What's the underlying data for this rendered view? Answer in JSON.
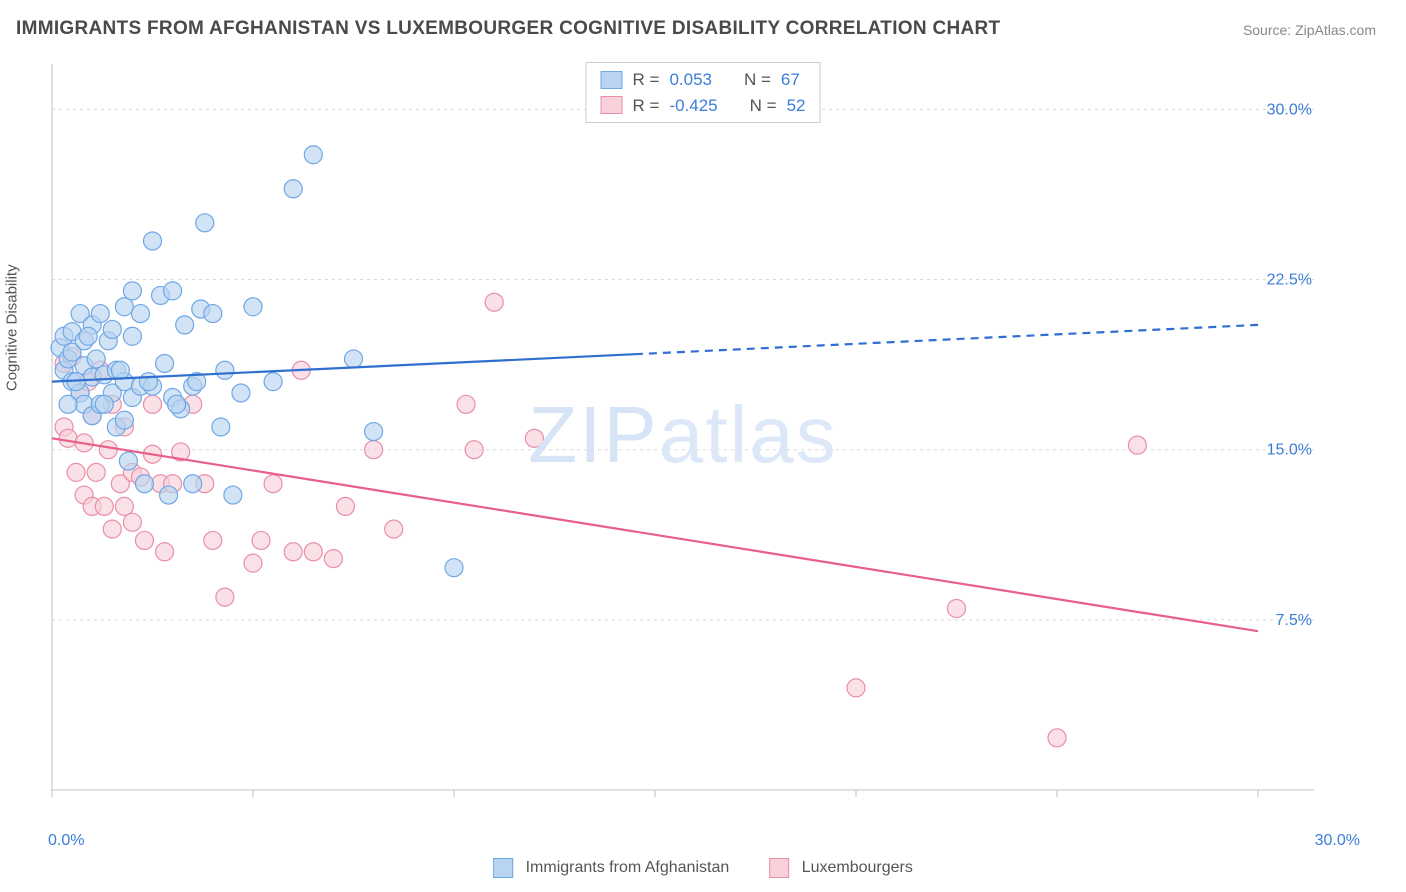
{
  "title": "IMMIGRANTS FROM AFGHANISTAN VS LUXEMBOURGER COGNITIVE DISABILITY CORRELATION CHART",
  "source": "Source: ZipAtlas.com",
  "ylabel": "Cognitive Disability",
  "watermark_a": "ZIP",
  "watermark_b": "atlas",
  "chart": {
    "type": "scatter",
    "xlim": [
      0,
      30
    ],
    "ylim": [
      0,
      32
    ],
    "yticks": [
      7.5,
      15.0,
      22.5,
      30.0
    ],
    "ytick_labels": [
      "7.5%",
      "15.0%",
      "22.5%",
      "30.0%"
    ],
    "xtick_positions": [
      0,
      5,
      10,
      15,
      20,
      25,
      30
    ],
    "x_axis_label_left": "0.0%",
    "x_axis_label_right": "30.0%",
    "grid_color": "#d8d8d8",
    "axis_color": "#c0c0c0",
    "background_color": "#ffffff",
    "marker_radius": 9,
    "marker_stroke_width": 1.2,
    "line_width": 2.2
  },
  "series": {
    "blue": {
      "label": "Immigrants from Afghanistan",
      "fill": "#b9d4f0",
      "stroke": "#6fa8e6",
      "line_color": "#2f6fd0",
      "R": "0.053",
      "N": "67",
      "trend": {
        "x1": 0,
        "y1": 18.0,
        "x2": 30,
        "y2": 20.5,
        "solid_until_x": 14.5
      },
      "points": [
        [
          0.2,
          19.5
        ],
        [
          0.3,
          20.0
        ],
        [
          0.3,
          18.5
        ],
        [
          0.4,
          19.0
        ],
        [
          0.5,
          20.2
        ],
        [
          0.5,
          18.0
        ],
        [
          0.5,
          19.3
        ],
        [
          0.7,
          17.5
        ],
        [
          0.7,
          21.0
        ],
        [
          0.8,
          18.7
        ],
        [
          0.8,
          17.0
        ],
        [
          0.8,
          19.8
        ],
        [
          1.0,
          18.2
        ],
        [
          1.0,
          20.5
        ],
        [
          1.0,
          16.5
        ],
        [
          1.2,
          17.0
        ],
        [
          1.2,
          21.0
        ],
        [
          1.3,
          18.3
        ],
        [
          1.4,
          19.8
        ],
        [
          1.5,
          17.5
        ],
        [
          1.5,
          20.3
        ],
        [
          1.6,
          16.0
        ],
        [
          1.6,
          18.5
        ],
        [
          1.8,
          21.3
        ],
        [
          1.8,
          16.3
        ],
        [
          1.8,
          18
        ],
        [
          1.9,
          14.5
        ],
        [
          2.0,
          17.3
        ],
        [
          2.0,
          22.0
        ],
        [
          2.0,
          20.0
        ],
        [
          2.2,
          21.0
        ],
        [
          2.2,
          17.8
        ],
        [
          2.3,
          13.5
        ],
        [
          2.5,
          17.8
        ],
        [
          2.5,
          24.2
        ],
        [
          2.7,
          21.8
        ],
        [
          2.9,
          13.0
        ],
        [
          3.0,
          17.3
        ],
        [
          3.0,
          22.0
        ],
        [
          3.2,
          16.8
        ],
        [
          3.3,
          20.5
        ],
        [
          3.5,
          13.5
        ],
        [
          3.5,
          17.8
        ],
        [
          3.7,
          21.2
        ],
        [
          3.8,
          25.0
        ],
        [
          4.0,
          21.0
        ],
        [
          4.2,
          16.0
        ],
        [
          4.5,
          13.0
        ],
        [
          5.0,
          21.3
        ],
        [
          5.5,
          18.0
        ],
        [
          6.0,
          26.5
        ],
        [
          6.5,
          28.0
        ],
        [
          7.5,
          19.0
        ],
        [
          8.0,
          15.8
        ],
        [
          10.0,
          9.8
        ],
        [
          0.4,
          17.0
        ],
        [
          0.6,
          18.0
        ],
        [
          0.9,
          20.0
        ],
        [
          1.1,
          19.0
        ],
        [
          1.3,
          17.0
        ],
        [
          1.7,
          18.5
        ],
        [
          2.4,
          18.0
        ],
        [
          2.8,
          18.8
        ],
        [
          3.1,
          17
        ],
        [
          3.6,
          18
        ],
        [
          4.3,
          18.5
        ],
        [
          4.7,
          17.5
        ]
      ]
    },
    "pink": {
      "label": "Luxembourgers",
      "fill": "#f7d0da",
      "stroke": "#e98fa8",
      "line_color": "#e85f89",
      "R": "-0.425",
      "N": "52",
      "trend": {
        "x1": 0,
        "y1": 15.5,
        "x2": 30,
        "y2": 7.0,
        "solid_until_x": 30
      },
      "points": [
        [
          0.3,
          16.0
        ],
        [
          0.3,
          18.8
        ],
        [
          0.4,
          15.5
        ],
        [
          0.5,
          19.1
        ],
        [
          0.6,
          14.0
        ],
        [
          0.7,
          17.5
        ],
        [
          0.8,
          13.0
        ],
        [
          0.8,
          15.3
        ],
        [
          0.9,
          18.0
        ],
        [
          1.0,
          12.5
        ],
        [
          1.0,
          16.5
        ],
        [
          1.1,
          14.0
        ],
        [
          1.2,
          18.5
        ],
        [
          1.3,
          12.5
        ],
        [
          1.4,
          15.0
        ],
        [
          1.5,
          11.5
        ],
        [
          1.5,
          17.0
        ],
        [
          1.7,
          13.5
        ],
        [
          1.8,
          12.5
        ],
        [
          1.8,
          16.0
        ],
        [
          2.0,
          14.0
        ],
        [
          2.0,
          11.8
        ],
        [
          2.2,
          13.8
        ],
        [
          2.3,
          11.0
        ],
        [
          2.5,
          14.8
        ],
        [
          2.5,
          17.0
        ],
        [
          2.7,
          13.5
        ],
        [
          2.8,
          10.5
        ],
        [
          3.0,
          13.5
        ],
        [
          3.2,
          14.9
        ],
        [
          3.5,
          17.0
        ],
        [
          3.8,
          13.5
        ],
        [
          4.0,
          11.0
        ],
        [
          4.3,
          8.5
        ],
        [
          5.0,
          10.0
        ],
        [
          5.2,
          11.0
        ],
        [
          5.5,
          13.5
        ],
        [
          6.0,
          10.5
        ],
        [
          6.2,
          18.5
        ],
        [
          6.5,
          10.5
        ],
        [
          7.0,
          10.2
        ],
        [
          7.3,
          12.5
        ],
        [
          8.0,
          15.0
        ],
        [
          8.5,
          11.5
        ],
        [
          10.3,
          17.0
        ],
        [
          10.5,
          15.0
        ],
        [
          11.0,
          21.5
        ],
        [
          12.0,
          15.5
        ],
        [
          20.0,
          4.5
        ],
        [
          22.5,
          8.0
        ],
        [
          25.0,
          2.3
        ],
        [
          27.0,
          15.2
        ]
      ]
    }
  },
  "legend_bottom": {
    "item1": "Immigrants from Afghanistan",
    "item2": "Luxembourgers"
  },
  "stats_labels": {
    "R": "R  =",
    "N": "N  ="
  }
}
